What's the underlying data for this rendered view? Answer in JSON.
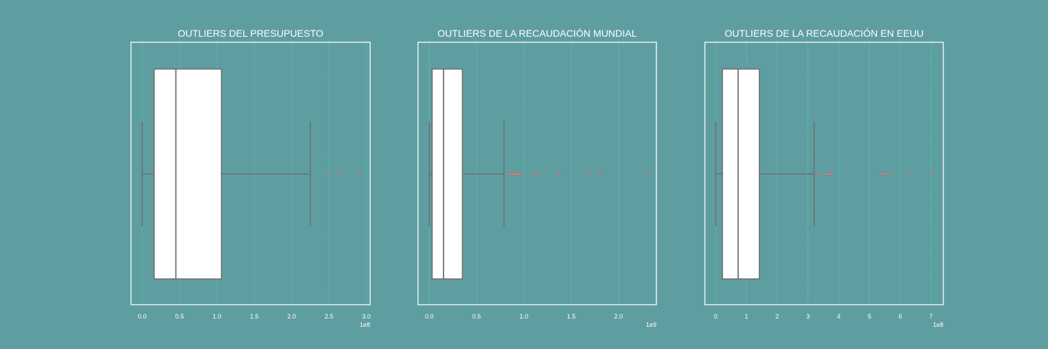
{
  "theme": {
    "background": "#5f9ea0",
    "frame": "#ffffff",
    "grid": "#40e0d0",
    "box_fill": "#ffffff",
    "line": "#6f6f6f",
    "outlier": "#c98b84",
    "text": "#ffffff"
  },
  "chart_data": [
    {
      "type": "box",
      "title": "OUTLIERS DEL PRESUPUESTO",
      "orientation": "horizontal",
      "xlim": [
        -0.15,
        3.05
      ],
      "xticks": [
        0.0,
        0.5,
        1.0,
        1.5,
        2.0,
        2.5,
        3.0
      ],
      "tick_labels": [
        "0.0",
        "0.5",
        "1.0",
        "1.5",
        "2.0",
        "2.5",
        "3.0"
      ],
      "offset_label": "1e8",
      "grid": "vertical",
      "box": {
        "whisker_low": 0.0,
        "q1": 0.16,
        "median": 0.45,
        "q3": 1.06,
        "whisker_high": 2.25
      },
      "outliers": [
        2.47,
        2.63,
        2.9
      ]
    },
    {
      "type": "box",
      "title": "OUTLIERS DE LA RECAUDACIÓN MUNDIAL",
      "orientation": "horizontal",
      "xlim": [
        -0.12,
        2.4
      ],
      "xticks": [
        0.0,
        0.5,
        1.0,
        1.5,
        2.0
      ],
      "tick_labels": [
        "0.0",
        "0.5",
        "1.0",
        "1.5",
        "2.0"
      ],
      "offset_label": "1e9",
      "grid": "vertical",
      "box": {
        "whisker_low": 0.0,
        "q1": 0.03,
        "median": 0.15,
        "q3": 0.35,
        "whisker_high": 0.79
      },
      "outliers": [
        0.85,
        0.87,
        0.89,
        0.91,
        0.93,
        0.95,
        0.98,
        1.11,
        1.15,
        1.37,
        1.69,
        1.8,
        2.3
      ]
    },
    {
      "type": "box",
      "title": "OUTLIERS DE LA RECAUDACIÓN EN EEUU",
      "orientation": "horizontal",
      "xlim": [
        -0.35,
        7.4
      ],
      "xticks": [
        0,
        1,
        2,
        3,
        4,
        5,
        6,
        7
      ],
      "tick_labels": [
        "0",
        "1",
        "2",
        "3",
        "4",
        "5",
        "6",
        "7"
      ],
      "offset_label": "1e8",
      "grid": "vertical",
      "box": {
        "whisker_low": 0.0,
        "q1": 0.22,
        "median": 0.73,
        "q3": 1.42,
        "whisker_high": 3.2
      },
      "outliers": [
        3.3,
        3.33,
        3.58,
        3.62,
        3.7,
        3.78,
        5.36,
        5.4,
        5.55,
        5.72,
        6.22,
        7.05
      ]
    }
  ]
}
